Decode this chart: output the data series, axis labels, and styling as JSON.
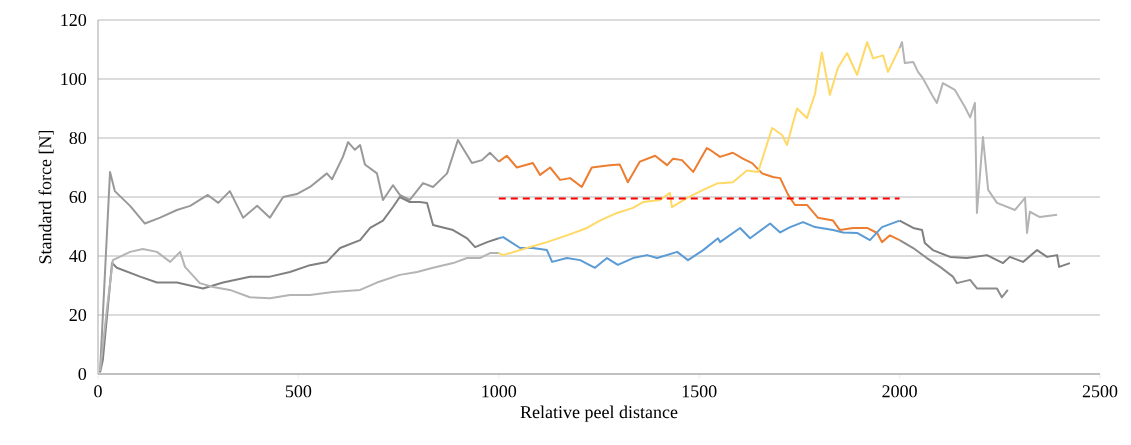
{
  "chart_data": {
    "type": "line",
    "xlabel": "Relative peel distance",
    "ylabel": "Standard force [N]",
    "xlim": [
      0,
      2500
    ],
    "xticks": [
      0,
      500,
      1000,
      1500,
      2000,
      2500
    ],
    "ylim": [
      0,
      120
    ],
    "yticks": [
      0,
      20,
      40,
      60,
      80,
      100,
      120
    ],
    "grid": "y",
    "marker": "none",
    "line_style": "solid",
    "series": [
      {
        "color": "#999999",
        "x": [
          5,
          30,
          42,
          80,
          117,
          155,
          197,
          230,
          274,
          300,
          329,
          362,
          397,
          429,
          462,
          496,
          529,
          571,
          584,
          611,
          624,
          641,
          654,
          666,
          696,
          711,
          736,
          753,
          778,
          811,
          836,
          871,
          898,
          933,
          958,
          978,
          1000
        ],
        "values": [
          0.7,
          68.5,
          62,
          57,
          51,
          53,
          55.6,
          57,
          60.7,
          58,
          62,
          53,
          57,
          53,
          60,
          61,
          63.4,
          68,
          66,
          73.6,
          78.6,
          76,
          77.6,
          71,
          68,
          59,
          64,
          60.7,
          59,
          64.7,
          63.4,
          68,
          79.3,
          71.5,
          72.5,
          75,
          72
        ]
      },
      {
        "color": "#ed7d31",
        "x": [
          1000,
          1020,
          1045,
          1085,
          1103,
          1128,
          1153,
          1178,
          1207,
          1232,
          1277,
          1302,
          1322,
          1352,
          1390,
          1420,
          1435,
          1457,
          1485,
          1519,
          1527,
          1552,
          1584,
          1609,
          1632,
          1657,
          1684,
          1702,
          1722,
          1739,
          1769,
          1796,
          1834,
          1851,
          1884,
          1919,
          1944,
          1956,
          1976,
          2000
        ],
        "values": [
          72,
          74,
          70,
          71.5,
          67.5,
          70,
          65.8,
          66.4,
          63.4,
          70,
          70.8,
          71,
          65,
          72,
          74,
          70.8,
          73,
          72.5,
          68.5,
          76.6,
          76,
          73.6,
          75,
          73,
          71.5,
          68,
          66.8,
          66.4,
          60.7,
          57.3,
          57.3,
          53,
          52,
          48.8,
          49.5,
          49.5,
          47.8,
          44.7,
          47,
          45.4
        ]
      },
      {
        "color": "#8c8c8c",
        "x": [
          2000,
          2034,
          2068,
          2101,
          2133,
          2143,
          2176,
          2193,
          2243,
          2255,
          2270
        ],
        "values": [
          45.4,
          42.7,
          39.3,
          36.3,
          33,
          30.8,
          31.9,
          29,
          29,
          26,
          28.5
        ]
      },
      {
        "color": "#808080",
        "x": [
          5,
          12,
          35,
          47,
          105,
          147,
          197,
          262,
          312,
          379,
          429,
          479,
          529,
          571,
          604,
          654,
          679,
          711,
          736,
          753,
          778,
          803,
          821,
          836,
          886,
          921,
          941,
          971,
          1000
        ],
        "values": [
          0.5,
          4.7,
          37.6,
          36,
          33,
          31,
          31,
          29,
          31,
          33,
          33,
          34.6,
          36.9,
          38,
          42.7,
          45.4,
          49.5,
          52,
          56.6,
          60,
          58.3,
          58.3,
          58,
          50.5,
          48.8,
          46,
          43,
          44.7,
          46
        ]
      },
      {
        "color": "#5b9bd5",
        "x": [
          1000,
          1011,
          1053,
          1085,
          1120,
          1133,
          1170,
          1203,
          1240,
          1270,
          1297,
          1335,
          1370,
          1395,
          1445,
          1472,
          1510,
          1547,
          1552,
          1602,
          1627,
          1677,
          1702,
          1727,
          1759,
          1789,
          1834,
          1859,
          1894,
          1926,
          1956,
          2000
        ],
        "values": [
          46,
          46.4,
          42.7,
          42.7,
          42,
          38,
          39.3,
          38.6,
          36,
          39.3,
          37,
          39.3,
          40.3,
          39.3,
          41.4,
          38.6,
          42,
          46,
          44.7,
          49.5,
          46,
          51,
          48,
          49.8,
          51.5,
          49.8,
          48.8,
          48,
          47.8,
          45.4,
          49.8,
          52
        ]
      },
      {
        "color": "#7f7f7f",
        "x": [
          2000,
          2034,
          2056,
          2063,
          2083,
          2126,
          2168,
          2218,
          2258,
          2275,
          2308,
          2343,
          2368,
          2393,
          2398,
          2425
        ],
        "values": [
          52,
          49.5,
          48.8,
          44.4,
          42,
          39.7,
          39.3,
          40.3,
          37.6,
          39.7,
          38,
          42,
          39.7,
          40.3,
          36.3,
          37.6
        ]
      },
      {
        "color": "#b4b4b4",
        "x": [
          5,
          22,
          37,
          80,
          112,
          147,
          180,
          205,
          217,
          254,
          287,
          329,
          379,
          429,
          479,
          529,
          586,
          654,
          696,
          753,
          796,
          836,
          886,
          921,
          953,
          978,
          1000
        ],
        "values": [
          1,
          21.7,
          38.6,
          41.4,
          42.4,
          41.4,
          38,
          41.4,
          36.3,
          30.8,
          29.5,
          28.5,
          26,
          25.7,
          26.8,
          26.8,
          27.8,
          28.5,
          31,
          33.6,
          34.6,
          36,
          37.6,
          39.3,
          39.3,
          41,
          41
        ]
      },
      {
        "color": "#ffd966",
        "x": [
          1000,
          1011,
          1070,
          1120,
          1170,
          1220,
          1252,
          1295,
          1335,
          1360,
          1402,
          1427,
          1432,
          1470,
          1510,
          1547,
          1552,
          1584,
          1619,
          1647,
          1682,
          1707,
          1719,
          1744,
          1769,
          1789,
          1806,
          1826,
          1846,
          1869,
          1894,
          1919,
          1934,
          1959,
          1971,
          2000
        ],
        "values": [
          41,
          40.3,
          42.7,
          44.7,
          47,
          49.5,
          52,
          54.6,
          56.3,
          58.3,
          59,
          61.4,
          56.6,
          59.7,
          62.4,
          64.7,
          64.7,
          65,
          69,
          68.5,
          83.4,
          81,
          77.6,
          90,
          86.8,
          95,
          109,
          94.6,
          103.7,
          108.8,
          101.4,
          112.5,
          107,
          108,
          102.4,
          110.5
        ]
      },
      {
        "color": "#b4b4b4",
        "x": [
          2000,
          2006,
          2013,
          2034,
          2046,
          2058,
          2081,
          2093,
          2108,
          2138,
          2163,
          2176,
          2188,
          2193,
          2208,
          2221,
          2243,
          2288,
          2313,
          2318,
          2325,
          2350,
          2393
        ],
        "values": [
          110.5,
          112.5,
          105.4,
          105.8,
          102.4,
          100.3,
          94.6,
          91.9,
          98.6,
          96.3,
          90.5,
          87,
          91.9,
          54.6,
          80.3,
          62.4,
          58,
          55.6,
          59.7,
          47.8,
          55,
          53.2,
          54
        ]
      },
      {
        "color": "#ff0000",
        "line_style": "dashed",
        "x": [
          1000,
          2000
        ],
        "values": [
          59.5,
          59.5
        ]
      }
    ]
  }
}
